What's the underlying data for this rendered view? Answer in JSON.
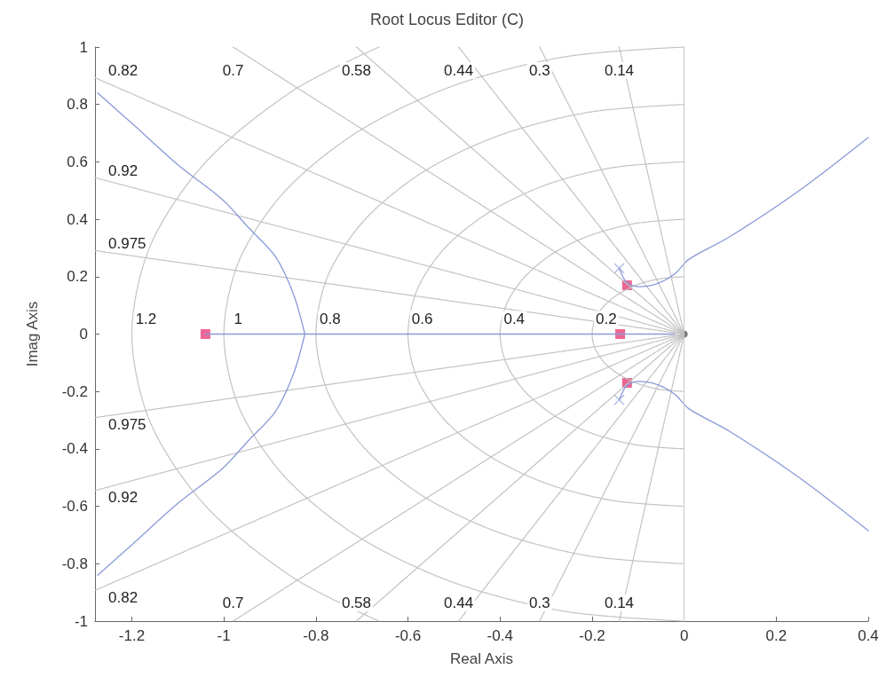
{
  "chart_data": {
    "type": "line",
    "title": "Root Locus Editor (C)",
    "xlabel": "Real Axis",
    "ylabel": "Imag Axis",
    "xlim": [
      -1.28,
      0.4
    ],
    "xticks": [
      -1.2,
      -1,
      -0.8,
      -0.6,
      -0.4,
      -0.2,
      0,
      0.2,
      0.4
    ],
    "ylim": [
      -1,
      1
    ],
    "yticks": [
      -1,
      -0.8,
      -0.6,
      -0.4,
      -0.2,
      0,
      0.2,
      0.4,
      0.6,
      0.8,
      1
    ],
    "grid": false,
    "legend": false,
    "ref_lines": [
      {
        "axis": "x",
        "value": 0,
        "color": "#c8c8c8"
      }
    ],
    "series": [
      {
        "type": "line",
        "name": "0.14",
        "color": "#c0c0c0",
        "line_style": "dotted",
        "marker": "none",
        "x": [
          -0.141,
          0,
          -0.141
        ],
        "values": [
          1,
          0,
          -1
        ]
      },
      {
        "type": "line",
        "name": "0.3",
        "color": "#c0c0c0",
        "line_style": "dotted",
        "marker": "none",
        "x": [
          -0.314,
          0,
          -0.314
        ],
        "values": [
          1,
          0,
          -1
        ]
      },
      {
        "type": "line",
        "name": "0.44",
        "color": "#c0c0c0",
        "line_style": "dotted",
        "marker": "none",
        "x": [
          -0.49,
          0,
          -0.49
        ],
        "values": [
          1,
          0,
          -1
        ]
      },
      {
        "type": "line",
        "name": "0.58",
        "color": "#c0c0c0",
        "line_style": "dotted",
        "marker": "none",
        "x": [
          -0.712,
          0,
          -0.712
        ],
        "values": [
          1,
          0,
          -1
        ]
      },
      {
        "type": "line",
        "name": "0.7",
        "color": "#c0c0c0",
        "line_style": "dotted",
        "marker": "none",
        "x": [
          -0.98,
          0,
          -0.98
        ],
        "values": [
          1,
          0,
          -1
        ]
      },
      {
        "type": "line",
        "name": "0.82",
        "color": "#c0c0c0",
        "line_style": "dotted",
        "marker": "none",
        "x": [
          -1.28,
          0,
          -1.28
        ],
        "values": [
          0.893,
          0,
          -0.893
        ]
      },
      {
        "type": "line",
        "name": "0.92",
        "color": "#c0c0c0",
        "line_style": "dotted",
        "marker": "none",
        "x": [
          -1.28,
          0,
          -1.28
        ],
        "values": [
          0.545,
          0,
          -0.545
        ]
      },
      {
        "type": "line",
        "name": "0.975",
        "color": "#c0c0c0",
        "line_style": "dotted",
        "marker": "none",
        "x": [
          -1.28,
          0,
          -1.28
        ],
        "values": [
          0.291,
          0,
          -0.291
        ]
      },
      {
        "type": "line",
        "name": "0.2",
        "color": "#c0c0c0",
        "line_style": "dotted",
        "marker": "none",
        "x": [
          0,
          -0.052,
          -0.1,
          -0.141,
          -0.173,
          -0.193,
          -0.2,
          -0.193,
          -0.173,
          -0.141,
          -0.1,
          -0.052,
          0
        ],
        "values": [
          0.2,
          0.193,
          0.173,
          0.141,
          0.1,
          0.052,
          0,
          -0.052,
          -0.1,
          -0.141,
          -0.173,
          -0.193,
          -0.2
        ]
      },
      {
        "type": "line",
        "name": "0.4",
        "color": "#c0c0c0",
        "line_style": "dotted",
        "marker": "none",
        "x": [
          0,
          -0.104,
          -0.2,
          -0.283,
          -0.346,
          -0.386,
          -0.4,
          -0.386,
          -0.346,
          -0.283,
          -0.2,
          -0.104,
          0
        ],
        "values": [
          0.4,
          0.386,
          0.346,
          0.283,
          0.2,
          0.104,
          0,
          -0.104,
          -0.2,
          -0.283,
          -0.346,
          -0.386,
          -0.4
        ]
      },
      {
        "type": "line",
        "name": "0.6",
        "color": "#c0c0c0",
        "line_style": "dotted",
        "marker": "none",
        "x": [
          0,
          -0.155,
          -0.3,
          -0.424,
          -0.52,
          -0.58,
          -0.6,
          -0.58,
          -0.52,
          -0.424,
          -0.3,
          -0.155,
          0
        ],
        "values": [
          0.6,
          0.58,
          0.52,
          0.424,
          0.3,
          0.155,
          0,
          -0.155,
          -0.3,
          -0.424,
          -0.52,
          -0.58,
          -0.6
        ]
      },
      {
        "type": "line",
        "name": "0.8",
        "color": "#c0c0c0",
        "line_style": "dotted",
        "marker": "none",
        "x": [
          0,
          -0.207,
          -0.4,
          -0.566,
          -0.693,
          -0.773,
          -0.8,
          -0.773,
          -0.693,
          -0.566,
          -0.4,
          -0.207,
          0
        ],
        "values": [
          0.8,
          0.773,
          0.693,
          0.566,
          0.4,
          0.207,
          0,
          -0.207,
          -0.4,
          -0.566,
          -0.693,
          -0.773,
          -0.8
        ]
      },
      {
        "type": "line",
        "name": "1",
        "color": "#c0c0c0",
        "line_style": "dotted",
        "marker": "none",
        "x": [
          0,
          -0.259,
          -0.5,
          -0.707,
          -0.866,
          -0.966,
          -1,
          -0.966,
          -0.866,
          -0.707,
          -0.5,
          -0.259,
          0
        ],
        "values": [
          1,
          0.966,
          0.866,
          0.707,
          0.5,
          0.259,
          0,
          -0.259,
          -0.5,
          -0.707,
          -0.866,
          -0.966,
          -1
        ]
      },
      {
        "type": "line",
        "name": "1.2",
        "color": "#c0c0c0",
        "line_style": "dotted",
        "marker": "none",
        "x": [
          -0.663,
          -0.849,
          -1.039,
          -1.159,
          -1.2,
          -1.159,
          -1.039,
          -0.849,
          -0.663
        ],
        "values": [
          1,
          0.849,
          0.6,
          0.311,
          0,
          -0.311,
          -0.6,
          -0.849,
          -1
        ]
      },
      {
        "color": "#8a9ad8",
        "line_style": "solid",
        "marker": "none",
        "x": [
          -1.274,
          -1.197,
          -1.1,
          -1.004,
          -0.946,
          -0.888,
          -0.849,
          -0.824
        ],
        "values": [
          0.84,
          0.73,
          0.59,
          0.47,
          0.37,
          0.27,
          0.14,
          0
        ]
      },
      {
        "color": "#8a9ad8",
        "line_style": "solid",
        "marker": "none",
        "x": [
          -1.274,
          -1.197,
          -1.1,
          -1.004,
          -0.946,
          -0.888,
          -0.849,
          -0.824
        ],
        "values": [
          -0.84,
          -0.73,
          -0.59,
          -0.47,
          -0.37,
          -0.27,
          -0.14,
          0
        ]
      },
      {
        "color": "#8a9ad8",
        "line_style": "solid",
        "marker": "none",
        "x": [
          -1.04,
          -0.02
        ],
        "values": [
          0,
          0
        ]
      },
      {
        "color": "#8a9ad8",
        "line_style": "solid",
        "marker": "none",
        "x": [
          -0.141,
          -0.125,
          -0.1,
          -0.06,
          -0.02,
          0.01,
          0.1,
          0.25,
          0.4
        ],
        "values": [
          0.229,
          0.18,
          0.165,
          0.175,
          0.21,
          0.26,
          0.34,
          0.5,
          0.685
        ]
      },
      {
        "color": "#8a9ad8",
        "line_style": "solid",
        "marker": "none",
        "x": [
          -0.141,
          -0.125,
          -0.1,
          -0.06,
          -0.02,
          0.01,
          0.1,
          0.25,
          0.4
        ],
        "values": [
          -0.229,
          -0.18,
          -0.165,
          -0.175,
          -0.21,
          -0.26,
          -0.34,
          -0.5,
          -0.685
        ]
      },
      {
        "type": "scatter",
        "color": "#8a9ad8",
        "marker": "cross",
        "x": [
          -0.141,
          -0.141
        ],
        "values": [
          0.229,
          -0.229
        ]
      },
      {
        "type": "scatter",
        "color": "#555555",
        "marker": "circle",
        "x": [
          0
        ],
        "values": [
          0
        ]
      },
      {
        "type": "scatter",
        "color": "#e8407c",
        "marker": "square",
        "x": [
          -1.04,
          -0.139,
          -0.124,
          -0.124
        ],
        "values": [
          0,
          0,
          0.17,
          -0.17
        ]
      }
    ]
  }
}
